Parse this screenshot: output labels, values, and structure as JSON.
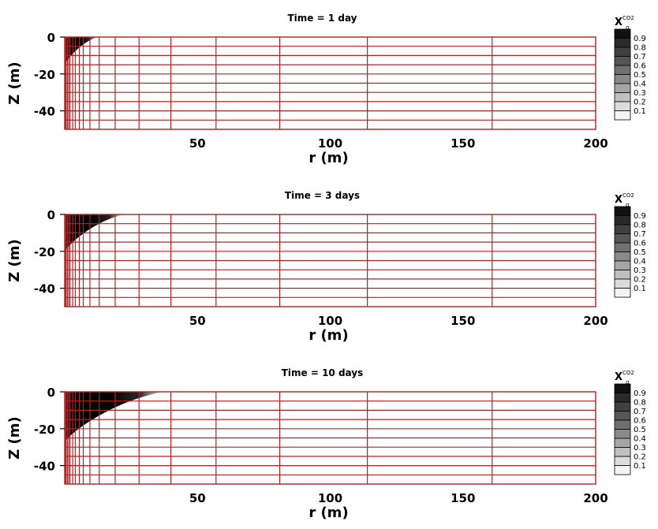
{
  "chart_data": [
    {
      "type": "heatmap",
      "title": "Time = 1 day",
      "xlabel": "r (m)",
      "ylabel": "Z (m)",
      "xlim": [
        0,
        200
      ],
      "ylim": [
        -50,
        0
      ],
      "x_ticks": [
        "50",
        "100",
        "150",
        "200"
      ],
      "y_ticks": [
        "0",
        "-20",
        "-40"
      ],
      "plume": {
        "r_at_top": 10,
        "z_at_axis": -15
      },
      "colorbar": {
        "title": "X",
        "superscript": "CO2",
        "subscript": "g",
        "levels": [
          "0.9",
          "0.8",
          "0.7",
          "0.6",
          "0.5",
          "0.4",
          "0.3",
          "0.2",
          "0.1"
        ]
      }
    },
    {
      "type": "heatmap",
      "title": "Time = 3 days",
      "xlabel": "r (m)",
      "ylabel": "Z (m)",
      "xlim": [
        0,
        200
      ],
      "ylim": [
        -50,
        0
      ],
      "x_ticks": [
        "50",
        "100",
        "150",
        "200"
      ],
      "y_ticks": [
        "0",
        "-20",
        "-40"
      ],
      "plume": {
        "r_at_top": 18,
        "z_at_axis": -20
      },
      "colorbar": {
        "title": "X",
        "superscript": "CO2",
        "subscript": "g",
        "levels": [
          "0.9",
          "0.8",
          "0.7",
          "0.6",
          "0.5",
          "0.4",
          "0.3",
          "0.2",
          "0.1"
        ]
      }
    },
    {
      "type": "heatmap",
      "title": "Time = 10 days",
      "xlabel": "r (m)",
      "ylabel": "Z (m)",
      "xlim": [
        0,
        200
      ],
      "ylim": [
        -50,
        0
      ],
      "x_ticks": [
        "50",
        "100",
        "150",
        "200"
      ],
      "y_ticks": [
        "0",
        "-20",
        "-40"
      ],
      "plume": {
        "r_at_top": 30,
        "z_at_axis": -27
      },
      "colorbar": {
        "title": "X",
        "superscript": "CO2",
        "subscript": "g",
        "levels": [
          "0.9",
          "0.8",
          "0.7",
          "0.6",
          "0.5",
          "0.4",
          "0.3",
          "0.2",
          "0.1"
        ]
      }
    }
  ],
  "mesh": {
    "r_lines": [
      0.2,
      0.5,
      1,
      1.5,
      2,
      3,
      4,
      5.5,
      7,
      9.5,
      13,
      19,
      28,
      40,
      57,
      81,
      114,
      161
    ],
    "z_lines": [
      -5,
      -10,
      -15,
      -20,
      -25,
      -30,
      -35,
      -40,
      -45
    ],
    "color": "#b22222"
  },
  "colors": {
    "plume": "#000000",
    "background": "#ffffff"
  }
}
